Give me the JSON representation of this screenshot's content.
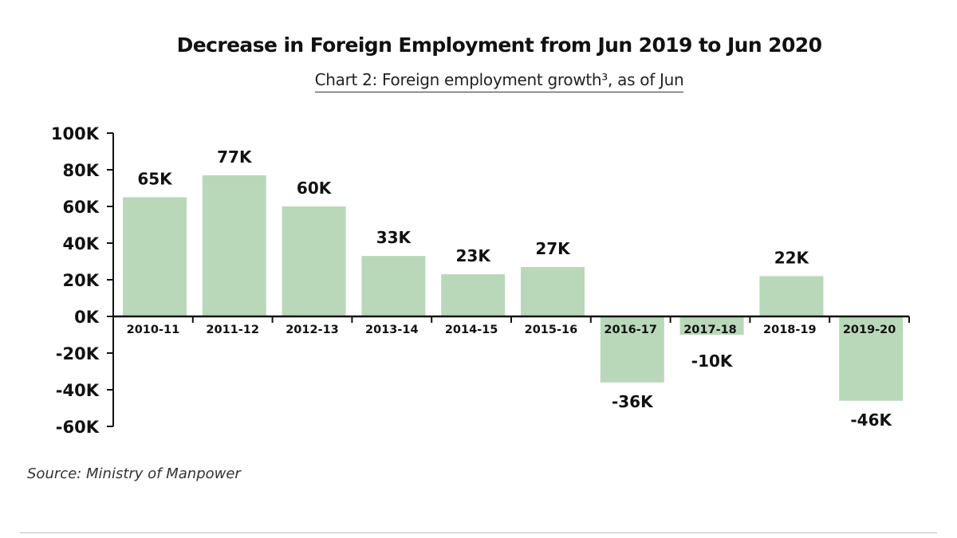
{
  "colors": {
    "bar": "#b9d8b9",
    "axis": "#111111",
    "text": "#111111"
  },
  "source": "Source: Ministry of Manpower",
  "chart_data": {
    "type": "bar",
    "title": "Decrease in Foreign Employment from Jun 2019 to Jun 2020",
    "subtitle": "Chart 2: Foreign employment growth³, as of Jun",
    "xlabel": "",
    "ylabel": "",
    "categories": [
      "2010-11",
      "2011-12",
      "2012-13",
      "2013-14",
      "2014-15",
      "2015-16",
      "2016-17",
      "2017-18",
      "2018-19",
      "2019-20"
    ],
    "values": [
      65,
      77,
      60,
      33,
      23,
      27,
      -36,
      -10,
      22,
      -46
    ],
    "data_labels": [
      "65K",
      "77K",
      "60K",
      "33K",
      "23K",
      "27K",
      "-36K",
      "-10K",
      "22K",
      "-46K"
    ],
    "yticks": [
      100,
      80,
      60,
      40,
      20,
      0,
      -20,
      -40,
      -60
    ],
    "ytick_labels": [
      "100K",
      "80K",
      "60K",
      "40K",
      "20K",
      "0K",
      "-20K",
      "-40K",
      "-60K"
    ],
    "ylim": [
      -60,
      100
    ],
    "grid": false,
    "legend": "none"
  }
}
